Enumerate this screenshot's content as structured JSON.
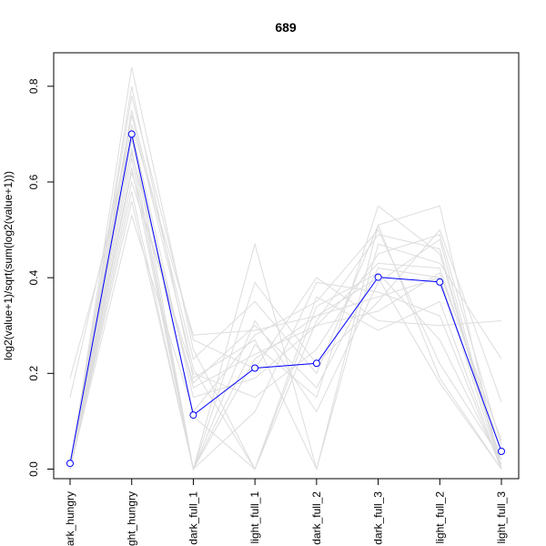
{
  "chart_data": {
    "type": "line",
    "title": "689",
    "xlabel": "",
    "ylabel": "log2(value+1)/sqrt(sum(log2(value+1)))",
    "categories": [
      "dark_hungry",
      "light_hungry",
      "dark_full_1",
      "light_full_1",
      "dark_full_2",
      "dark_full_3",
      "light_full_2",
      "light_full_3"
    ],
    "ylim": [
      -0.02,
      0.87
    ],
    "yticks": [
      0.0,
      0.2,
      0.4,
      0.6,
      0.8
    ],
    "ytick_labels": [
      "0.0",
      "0.2",
      "0.4",
      "0.6",
      "0.8"
    ],
    "grid": false,
    "highlight_series": {
      "values": [
        0.012,
        0.7,
        0.113,
        0.211,
        0.221,
        0.401,
        0.391,
        0.037
      ],
      "color": "#0000ff",
      "marker": "open-circle"
    },
    "background_series_color": "#dddddd",
    "background_series": [
      {
        "values": [
          0.0,
          0.72,
          0.28,
          0.29,
          0.32,
          0.36,
          0.4,
          0.0
        ]
      },
      {
        "values": [
          0.0,
          0.65,
          0.0,
          0.47,
          0.0,
          0.51,
          0.55,
          0.0
        ]
      },
      {
        "values": [
          0.0,
          0.6,
          0.2,
          0.15,
          0.25,
          0.45,
          0.49,
          0.05
        ]
      },
      {
        "values": [
          0.0,
          0.78,
          0.27,
          0.21,
          0.4,
          0.31,
          0.3,
          0.31
        ]
      },
      {
        "values": [
          0.0,
          0.53,
          0.12,
          0.28,
          0.35,
          0.5,
          0.22,
          0.02
        ]
      },
      {
        "values": [
          0.0,
          0.7,
          0.0,
          0.23,
          0.32,
          0.4,
          0.18,
          0.0
        ]
      },
      {
        "values": [
          0.0,
          0.84,
          0.25,
          0.0,
          0.31,
          0.49,
          0.46,
          0.0
        ]
      },
      {
        "values": [
          0.0,
          0.62,
          0.18,
          0.3,
          0.17,
          0.42,
          0.4,
          0.02
        ]
      },
      {
        "values": [
          0.0,
          0.67,
          0.0,
          0.39,
          0.22,
          0.35,
          0.5,
          0.14
        ]
      },
      {
        "values": [
          0.0,
          0.74,
          0.21,
          0.0,
          0.36,
          0.29,
          0.35,
          0.0
        ]
      },
      {
        "values": [
          0.0,
          0.58,
          0.0,
          0.26,
          0.15,
          0.55,
          0.45,
          0.0
        ]
      },
      {
        "values": [
          0.15,
          0.71,
          0.15,
          0.19,
          0.3,
          0.33,
          0.41,
          0.06
        ]
      },
      {
        "values": [
          0.0,
          0.63,
          0.0,
          0.12,
          0.39,
          0.37,
          0.32,
          0.0
        ]
      },
      {
        "values": [
          0.0,
          0.8,
          0.19,
          0.27,
          0.0,
          0.47,
          0.43,
          0.23
        ]
      },
      {
        "values": [
          0.0,
          0.69,
          0.11,
          0.0,
          0.34,
          0.41,
          0.27,
          0.01
        ]
      },
      {
        "values": [
          0.0,
          0.75,
          0.23,
          0.35,
          0.2,
          0.51,
          0.19,
          0.0
        ]
      },
      {
        "values": [
          0.0,
          0.56,
          0.0,
          0.31,
          0.12,
          0.39,
          0.48,
          0.0
        ]
      },
      {
        "values": [
          0.19,
          0.66,
          0.17,
          0.24,
          0.3,
          0.43,
          0.42,
          0.04
        ]
      }
    ]
  }
}
